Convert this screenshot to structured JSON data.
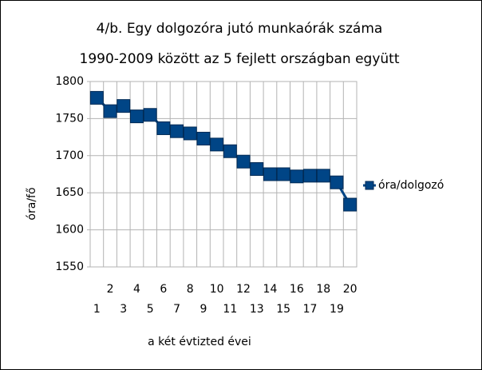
{
  "chart_data": {
    "type": "line",
    "title": "4/b. Egy dolgozóra jutó munkaórák száma",
    "subtitle": "1990-2009 között az 5 fejlett országban együtt",
    "x_label": "a két évtizted évei",
    "y_label": "óra/fő",
    "categories": [
      "1",
      "2",
      "3",
      "4",
      "5",
      "6",
      "7",
      "8",
      "9",
      "10",
      "11",
      "12",
      "13",
      "14",
      "15",
      "16",
      "17",
      "18",
      "19",
      "20"
    ],
    "series": [
      {
        "name": "óra/dolgozó",
        "color": "#004586",
        "values": [
          1778,
          1760,
          1767,
          1753,
          1755,
          1737,
          1733,
          1730,
          1723,
          1715,
          1706,
          1692,
          1682,
          1675,
          1675,
          1672,
          1673,
          1673,
          1664,
          1634
        ]
      }
    ],
    "ylim": [
      1550,
      1800
    ],
    "yticks": [
      1550,
      1600,
      1650,
      1700,
      1750,
      1800
    ],
    "grid": true,
    "legend": "right"
  }
}
